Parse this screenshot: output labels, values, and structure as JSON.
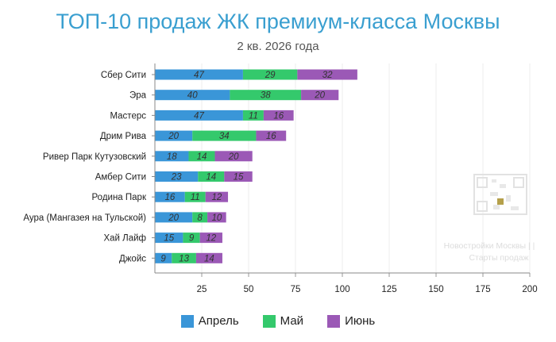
{
  "chart_data": {
    "type": "bar",
    "orientation": "horizontal",
    "stacked": true,
    "title": "ТОП-10 продаж ЖК премиум-класса Москвы",
    "subtitle": "2 кв. 2026 года",
    "categories": [
      "Сбер Сити",
      "Эра",
      "Мастерс",
      "Дрим Рива",
      "Ривер Парк Кутузовский",
      "Амбер Сити",
      "Родина Парк",
      "Аура (Мангазея на Тульской)",
      "Хай Лайф",
      "Джойс"
    ],
    "series": [
      {
        "name": "Апрель",
        "color": "#3a96d8",
        "values": [
          47,
          40,
          47,
          20,
          18,
          23,
          16,
          20,
          15,
          9
        ]
      },
      {
        "name": "Май",
        "color": "#34c96c",
        "values": [
          29,
          38,
          11,
          34,
          14,
          14,
          11,
          8,
          9,
          13
        ]
      },
      {
        "name": "Июнь",
        "color": "#9b59b6",
        "values": [
          32,
          20,
          16,
          16,
          20,
          15,
          12,
          10,
          12,
          14
        ]
      }
    ],
    "xlim": [
      0,
      200
    ],
    "xticks": [
      25,
      50,
      75,
      100,
      125,
      150,
      175,
      200
    ],
    "grid": true,
    "legend_position": "bottom"
  },
  "watermark": {
    "line1": "Новостройки Москвы | |",
    "line2": "Старты продаж"
  }
}
